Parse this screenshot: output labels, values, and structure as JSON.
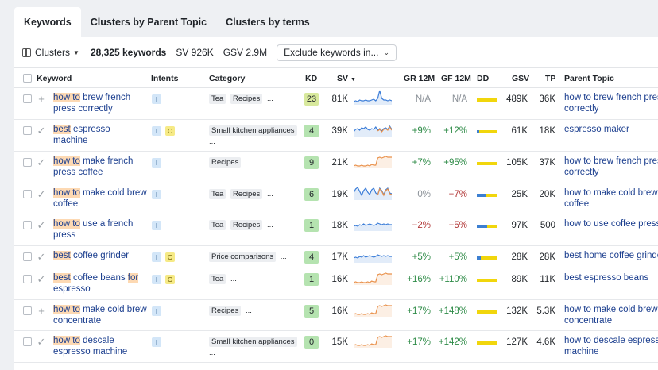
{
  "tabs": [
    "Keywords",
    "Clusters by Parent Topic",
    "Clusters by terms"
  ],
  "toolbar": {
    "clusters_label": "Clusters",
    "keyword_count": "28,325 keywords",
    "sv": "SV 926K",
    "gsv": "GSV 2.9M",
    "exclude_label": "Exclude keywords in..."
  },
  "columns": {
    "keyword": "Keyword",
    "intents": "Intents",
    "category": "Category",
    "kd": "KD",
    "sv": "SV",
    "gr12m": "GR 12M",
    "gf12m": "GF 12M",
    "dd": "DD",
    "gsv": "GSV",
    "tp": "TP",
    "parent_topic": "Parent Topic"
  },
  "colors": {
    "kd_green": "#b5e3b0",
    "kd_yellow_green": "#d8e99d",
    "kd_bg_light": "#c8ebc5",
    "dd_yellow": "#f1d60c",
    "dd_blue": "#3c7fd1",
    "spark_blue": "#3b7dd8",
    "spark_orange": "#e9914b"
  },
  "rows": [
    {
      "action": "plus",
      "keyword": [
        {
          "t": "how to",
          "h": true
        },
        {
          "t": " brew french press correctly",
          "h": false
        }
      ],
      "intents": [
        "I"
      ],
      "category": [
        {
          "t": "Tea",
          "chip": true
        },
        {
          "t": "Recipes",
          "chip": true
        },
        {
          "t": "...",
          "chip": false
        }
      ],
      "kd": "23",
      "sv": "81K",
      "gr": "N/A",
      "gf": "N/A",
      "gsv": "489K",
      "tp": "36K",
      "dd_blue": 0,
      "spark": "blue-spike",
      "parent_topic": "how to brew french press correctly"
    },
    {
      "action": "check",
      "keyword": [
        {
          "t": "best",
          "h": true
        },
        {
          "t": " espresso machine",
          "h": false
        }
      ],
      "intents": [
        "I",
        "C"
      ],
      "category": [
        {
          "t": "Small kitchen appliances",
          "chip": true
        },
        {
          "t": "...",
          "chip": false
        }
      ],
      "kd": "4",
      "sv": "39K",
      "gr": "+9%",
      "gf": "+12%",
      "gsv": "61K",
      "tp": "18K",
      "dd_blue": 0.1,
      "spark": "mixed",
      "parent_topic": "espresso maker"
    },
    {
      "action": "check",
      "keyword": [
        {
          "t": "how to",
          "h": true
        },
        {
          "t": " make french press coffee",
          "h": false
        }
      ],
      "intents": [
        "I"
      ],
      "category": [
        {
          "t": "Recipes",
          "chip": true
        },
        {
          "t": "...",
          "chip": false
        }
      ],
      "kd": "9",
      "sv": "21K",
      "gr": "+7%",
      "gf": "+95%",
      "gsv": "105K",
      "tp": "37K",
      "dd_blue": 0,
      "spark": "orange-rise",
      "parent_topic": "how to brew french press correctly"
    },
    {
      "action": "check",
      "keyword": [
        {
          "t": "how to",
          "h": true
        },
        {
          "t": " make cold brew coffee",
          "h": false
        }
      ],
      "intents": [
        "I"
      ],
      "category": [
        {
          "t": "Tea",
          "chip": true
        },
        {
          "t": "Recipes",
          "chip": true
        },
        {
          "t": "...",
          "chip": false
        }
      ],
      "kd": "6",
      "sv": "19K",
      "gr": "0%",
      "gf": "−7%",
      "gsv": "25K",
      "tp": "20K",
      "dd_blue": 0.45,
      "spark": "wavy",
      "parent_topic": "how to make cold brew coffee"
    },
    {
      "action": "check",
      "keyword": [
        {
          "t": "how to",
          "h": true
        },
        {
          "t": " use a french press",
          "h": false
        }
      ],
      "intents": [
        "I"
      ],
      "category": [
        {
          "t": "Tea",
          "chip": true
        },
        {
          "t": "Recipes",
          "chip": true
        },
        {
          "t": "...",
          "chip": false
        }
      ],
      "kd": "1",
      "sv": "18K",
      "gr": "−2%",
      "gf": "−5%",
      "gsv": "97K",
      "tp": "500",
      "dd_blue": 0.5,
      "spark": "blue-bumps",
      "parent_topic": "how to use coffee press"
    },
    {
      "action": "check",
      "keyword": [
        {
          "t": "best",
          "h": true
        },
        {
          "t": " coffee grinder",
          "h": false
        }
      ],
      "intents": [
        "I",
        "C"
      ],
      "category": [
        {
          "t": "Price comparisons",
          "chip": true
        },
        {
          "t": "...",
          "chip": false
        }
      ],
      "kd": "4",
      "sv": "17K",
      "gr": "+5%",
      "gf": "+5%",
      "gsv": "28K",
      "tp": "28K",
      "dd_blue": 0.2,
      "spark": "blue-bumps",
      "parent_topic": "best home coffee grinder"
    },
    {
      "action": "check",
      "keyword": [
        {
          "t": "best",
          "h": true
        },
        {
          "t": " coffee beans ",
          "h": false
        },
        {
          "t": "for",
          "h": true
        },
        {
          "t": " espresso",
          "h": false
        }
      ],
      "intents": [
        "I",
        "C"
      ],
      "category": [
        {
          "t": "Tea",
          "chip": true
        },
        {
          "t": "...",
          "chip": false
        }
      ],
      "kd": "1",
      "sv": "16K",
      "gr": "+16%",
      "gf": "+110%",
      "gsv": "89K",
      "tp": "11K",
      "dd_blue": 0,
      "spark": "orange-rise",
      "parent_topic": "best espresso beans"
    },
    {
      "action": "plus",
      "keyword": [
        {
          "t": "how to",
          "h": true
        },
        {
          "t": " make cold brew concentrate",
          "h": false
        }
      ],
      "intents": [
        "I"
      ],
      "category": [
        {
          "t": "Recipes",
          "chip": true
        },
        {
          "t": "...",
          "chip": false
        }
      ],
      "kd": "5",
      "sv": "16K",
      "gr": "+17%",
      "gf": "+148%",
      "gsv": "132K",
      "tp": "5.3K",
      "dd_blue": 0,
      "spark": "orange-rise",
      "parent_topic": "how to make cold brew concentrate"
    },
    {
      "action": "check",
      "keyword": [
        {
          "t": "how to",
          "h": true
        },
        {
          "t": " descale espresso machine",
          "h": false
        }
      ],
      "intents": [
        "I"
      ],
      "category": [
        {
          "t": "Small kitchen appliances",
          "chip": true
        },
        {
          "t": "...",
          "chip": false
        }
      ],
      "kd": "0",
      "sv": "15K",
      "gr": "+17%",
      "gf": "+142%",
      "gsv": "127K",
      "tp": "4.6K",
      "dd_blue": 0,
      "spark": "orange-rise",
      "parent_topic": "how to descale espresso machine"
    }
  ]
}
